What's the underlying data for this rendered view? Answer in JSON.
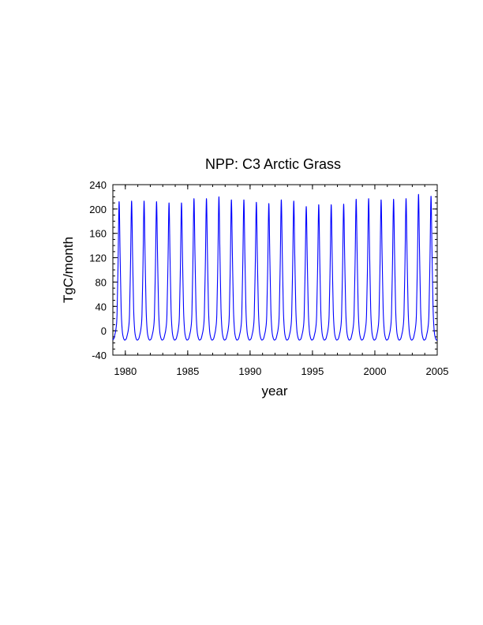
{
  "chart_data": {
    "type": "line",
    "title": "NPP: C3 Arctic Grass",
    "xlabel": "year",
    "ylabel": "TgC/month",
    "xlim": [
      1979,
      2005
    ],
    "ylim": [
      -40,
      240
    ],
    "x_ticks": [
      1980,
      1985,
      1990,
      1995,
      2000,
      2005
    ],
    "y_ticks": [
      -40,
      0,
      40,
      80,
      120,
      160,
      200,
      240
    ],
    "grid": false,
    "legend": "none",
    "series": [
      {
        "color": "#0000ff",
        "x_start": 1979,
        "time_step": "monthly",
        "annual_peaks": [
          212,
          213,
          213,
          212,
          210,
          210,
          217,
          217,
          220,
          215,
          215,
          211,
          209,
          215,
          213,
          204,
          207,
          207,
          208,
          216,
          217,
          215,
          216,
          217,
          224,
          221
        ],
        "annual_min": -15
      }
    ]
  }
}
